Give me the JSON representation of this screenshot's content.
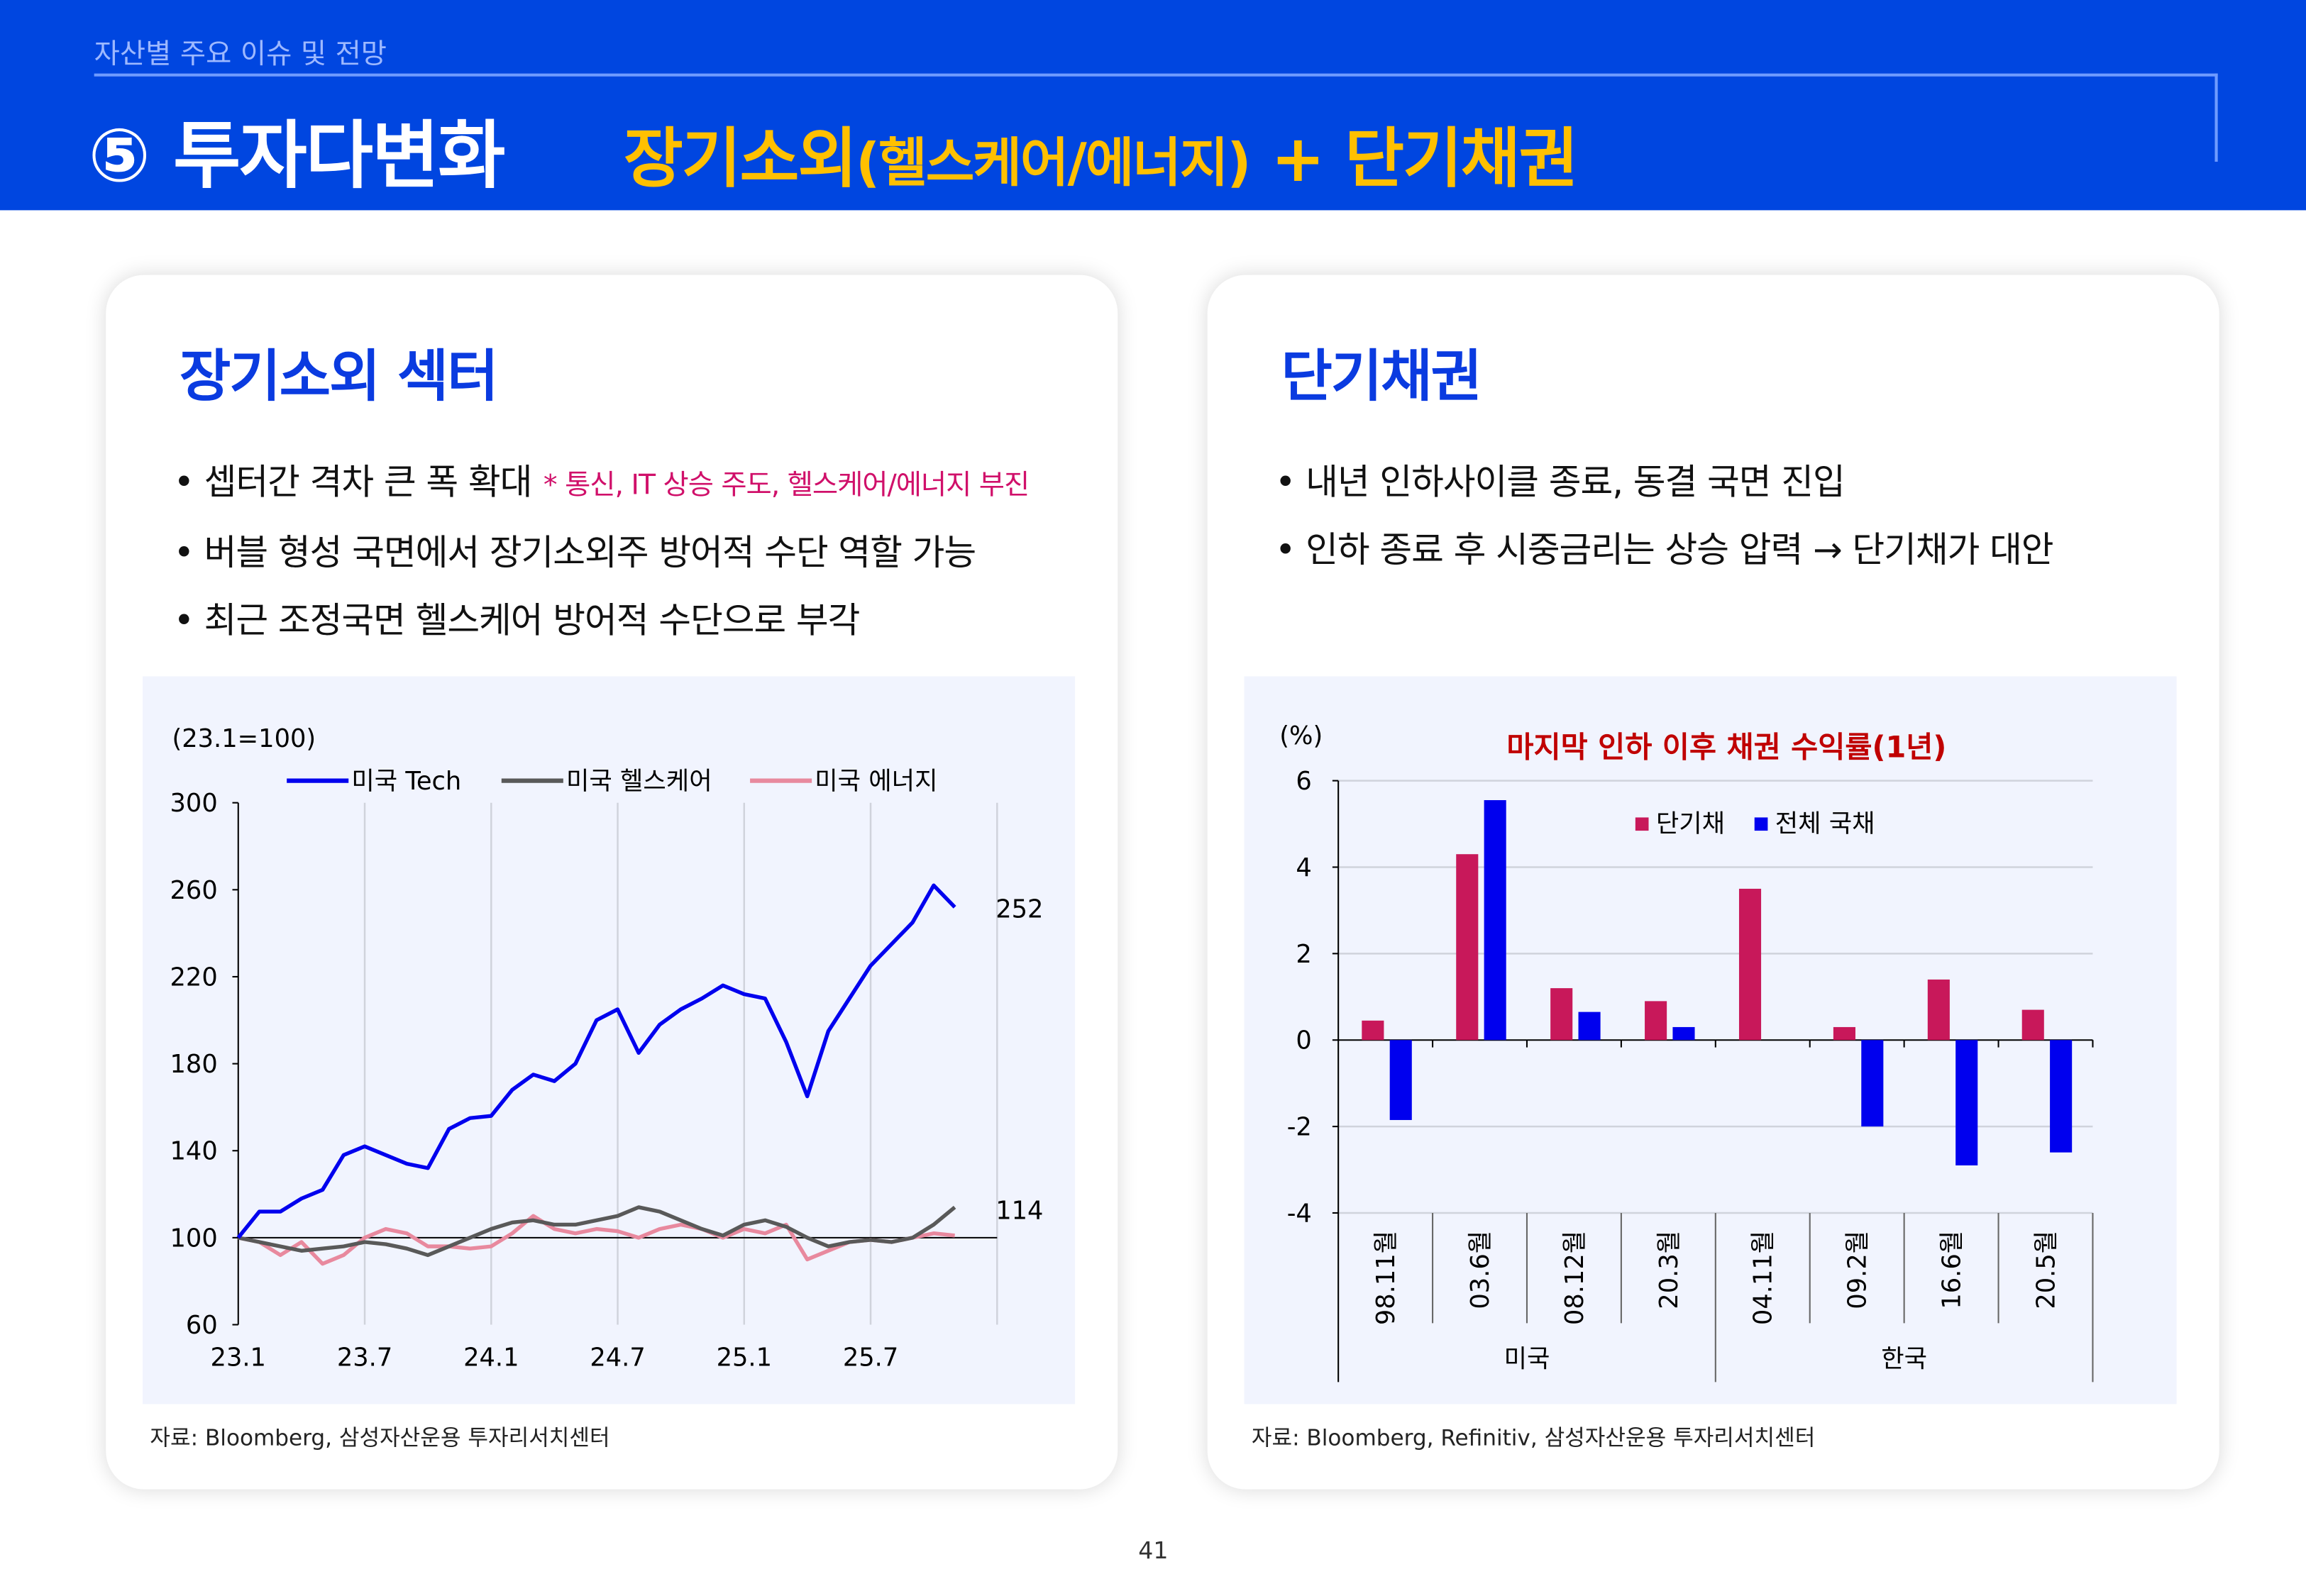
{
  "header": {
    "breadcrumb": "자산별 주요 이슈 및 전망",
    "title": "⑤ 투자다변화",
    "subtitle_a": "장기소외",
    "subtitle_b": "(헬스케어/에너지)",
    "subtitle_c": " + 단기채권"
  },
  "left": {
    "heading": "장기소외 섹터",
    "bullets": [
      "• 셉터간 격차 큰 폭 확대",
      "• 버블 형성 국면에서 장기소외주 방어적 수단 역할 가능",
      "• 최근 조정국면 헬스케어 방어적 수단으로 부각"
    ],
    "note": "* 통신, IT 상승 주도, 헬스케어/에너지 부진",
    "source": "자료: Bloomberg, 삼성자산운용 투자리서치센터"
  },
  "right": {
    "heading": "단기채권",
    "bullets": [
      "• 내년 인하사이클 종료, 동결 국면 진입",
      "• 인하 종료 후 시중금리는 상승 압력 → 단기채가 대안"
    ],
    "source": "자료: Bloomberg, Refinitiv, 삼성자산운용 투자리서치센터"
  },
  "page_number": "41",
  "chart_data": [
    {
      "type": "line",
      "unit_label": "(23.1=100)",
      "x_ticks": [
        "23.1",
        "23.7",
        "24.1",
        "24.7",
        "25.1",
        "25.7"
      ],
      "x_start": "23.1",
      "x_end": "25.11",
      "ylim": [
        60,
        300
      ],
      "y_ticks": [
        60,
        100,
        140,
        180,
        220,
        260,
        300
      ],
      "reference_line": 100,
      "grid": "vertical",
      "legend": "top",
      "end_labels": [
        "252",
        "114"
      ],
      "series": [
        {
          "name": "미국 Tech",
          "color": "#0000EE",
          "values": [
            100,
            112,
            112,
            118,
            122,
            138,
            142,
            138,
            134,
            132,
            150,
            155,
            156,
            168,
            175,
            172,
            180,
            200,
            205,
            185,
            198,
            205,
            210,
            216,
            212,
            210,
            190,
            165,
            195,
            210,
            225,
            235,
            245,
            262,
            252
          ]
        },
        {
          "name": "미국 헬스케어",
          "color": "#595959",
          "values": [
            100,
            98,
            96,
            94,
            95,
            96,
            98,
            97,
            95,
            92,
            96,
            100,
            104,
            107,
            108,
            106,
            106,
            108,
            110,
            114,
            112,
            108,
            104,
            101,
            106,
            108,
            105,
            100,
            96,
            98,
            99,
            98,
            100,
            106,
            114
          ]
        },
        {
          "name": "미국 에너지",
          "color": "#E8899E",
          "values": [
            100,
            98,
            92,
            98,
            88,
            92,
            100,
            104,
            102,
            96,
            96,
            95,
            96,
            102,
            110,
            104,
            102,
            104,
            103,
            100,
            104,
            106,
            104,
            100,
            104,
            102,
            106,
            90,
            94,
            98,
            99,
            98,
            100,
            102,
            101
          ]
        }
      ]
    },
    {
      "type": "bar",
      "title": "마지막 인하 이후 채권 수익률(1년)",
      "unit_label": "(%)",
      "categories": [
        "98.11월",
        "03.6월",
        "08.12월",
        "20.3월",
        "04.11월",
        "09.2월",
        "16.6월",
        "20.5월"
      ],
      "groups": [
        {
          "label": "미국",
          "count": 4
        },
        {
          "label": "한국",
          "count": 4
        }
      ],
      "ylim": [
        -4,
        6
      ],
      "y_ticks": [
        -4,
        -2,
        0,
        2,
        4,
        6
      ],
      "grid": "horizontal",
      "legend": "top-center",
      "series": [
        {
          "name": "단기채",
          "color": "#C8185A",
          "values": [
            0.45,
            4.3,
            1.2,
            0.9,
            3.5,
            0.3,
            1.4,
            0.7
          ]
        },
        {
          "name": "전체 국채",
          "color": "#0000EE",
          "values": [
            -1.85,
            5.55,
            0.65,
            0.3,
            0,
            -2.0,
            -2.9,
            -2.6
          ]
        }
      ]
    }
  ]
}
